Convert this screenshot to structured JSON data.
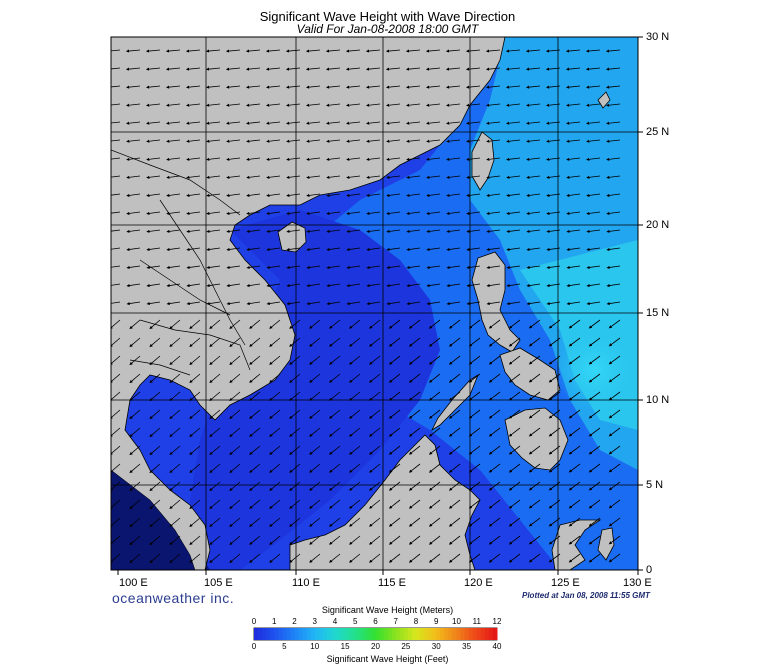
{
  "title": "Significant Wave Height with Wave Direction",
  "subtitle": "Valid For Jan-08-2008 18:00 GMT",
  "brand": "oceanweather inc.",
  "plotted": "Plotted at Jan 08, 2008 11:55 GMT",
  "lon_labels": [
    "100 E",
    "105 E",
    "110 E",
    "115 E",
    "120 E",
    "125 E",
    "130 E"
  ],
  "lat_labels": [
    "30 N",
    "25 N",
    "20 N",
    "15 N",
    "10 N",
    "5 N",
    "0"
  ],
  "colorbar": {
    "meters_title": "Significant Wave Height (Meters)",
    "feet_title": "Significant Wave Height (Feet)",
    "meters_ticks": [
      "0",
      "1",
      "2",
      "3",
      "4",
      "5",
      "6",
      "7",
      "8",
      "9",
      "10",
      "11",
      "12"
    ],
    "feet_ticks": [
      "0",
      "5",
      "10",
      "15",
      "20",
      "25",
      "30",
      "35",
      "40"
    ],
    "colors": [
      "#1f2fe0",
      "#1f55ef",
      "#1f86f7",
      "#20b7f4",
      "#20d8cf",
      "#22e08a",
      "#33e02f",
      "#8ae21f",
      "#d6e61d",
      "#f2bf1b",
      "#f0861a",
      "#ee4a19",
      "#e51818"
    ]
  },
  "colors": {
    "land": "#c0c0c0",
    "sea_low": "#1e40e6",
    "sea_mid": "#1a6df2",
    "sea_high": "#2bc6ee",
    "coast": "#000000",
    "grid": "#000000"
  }
}
